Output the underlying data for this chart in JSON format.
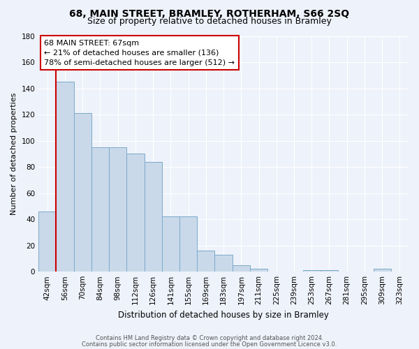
{
  "title": "68, MAIN STREET, BRAMLEY, ROTHERHAM, S66 2SQ",
  "subtitle": "Size of property relative to detached houses in Bramley",
  "xlabel": "Distribution of detached houses by size in Bramley",
  "ylabel": "Number of detached properties",
  "footnote1": "Contains HM Land Registry data © Crown copyright and database right 2024.",
  "footnote2": "Contains public sector information licensed under the Open Government Licence v3.0.",
  "annotation_line1": "68 MAIN STREET: 67sqm",
  "annotation_line2": "← 21% of detached houses are smaller (136)",
  "annotation_line3": "78% of semi-detached houses are larger (512) →",
  "bar_labels": [
    "42sqm",
    "56sqm",
    "70sqm",
    "84sqm",
    "98sqm",
    "112sqm",
    "126sqm",
    "141sqm",
    "155sqm",
    "169sqm",
    "183sqm",
    "197sqm",
    "211sqm",
    "225sqm",
    "239sqm",
    "253sqm",
    "267sqm",
    "281sqm",
    "295sqm",
    "309sqm",
    "323sqm"
  ],
  "bar_values": [
    46,
    145,
    121,
    95,
    95,
    90,
    84,
    42,
    42,
    16,
    13,
    5,
    2,
    0,
    0,
    1,
    1,
    0,
    0,
    2,
    0
  ],
  "bar_color": "#c9d9ea",
  "bar_edge_color": "#7aaac8",
  "red_line_x": 0.5,
  "ylim": [
    0,
    180
  ],
  "yticks": [
    0,
    20,
    40,
    60,
    80,
    100,
    120,
    140,
    160,
    180
  ],
  "background_color": "#eef2fa",
  "grid_color": "#ffffff",
  "annotation_box_color": "#ffffff",
  "annotation_box_edge": "#cc0000",
  "red_line_color": "#cc0000",
  "title_fontsize": 10,
  "subtitle_fontsize": 9,
  "axis_label_fontsize": 8.5,
  "tick_fontsize": 7.5,
  "annotation_fontsize": 8,
  "footnote_fontsize": 6,
  "ylabel_fontsize": 8
}
